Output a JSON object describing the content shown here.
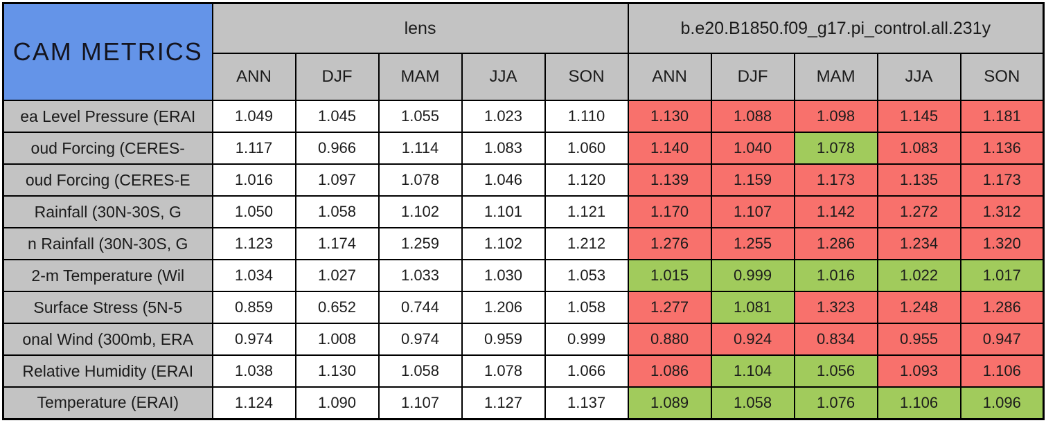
{
  "chart_data": {
    "type": "table",
    "title": "CAM METRICS",
    "col_groups": [
      {
        "label": "lens"
      },
      {
        "label": "b.e20.B1850.f09_g17.pi_control.all.231y"
      }
    ],
    "season_cols": [
      "ANN",
      "DJF",
      "MAM",
      "JJA",
      "SON"
    ],
    "colors": {
      "blue": "#6494E8",
      "gray": "#C3C3C3",
      "red": "#F8716C",
      "green": "#A1CB5C",
      "border": "#000000"
    },
    "rows": [
      {
        "label": "ea Level Pressure (ERAI",
        "lens": [
          "1.049",
          "1.045",
          "1.055",
          "1.023",
          "1.110"
        ],
        "control": [
          "1.130",
          "1.088",
          "1.098",
          "1.145",
          "1.181"
        ],
        "control_colors": [
          "red",
          "red",
          "red",
          "red",
          "red"
        ]
      },
      {
        "label": "oud Forcing (CERES-",
        "lens": [
          "1.117",
          "0.966",
          "1.114",
          "1.083",
          "1.060"
        ],
        "control": [
          "1.140",
          "1.040",
          "1.078",
          "1.083",
          "1.136"
        ],
        "control_colors": [
          "red",
          "red",
          "green",
          "red",
          "red"
        ]
      },
      {
        "label": "oud Forcing (CERES-E",
        "lens": [
          "1.016",
          "1.097",
          "1.078",
          "1.046",
          "1.120"
        ],
        "control": [
          "1.139",
          "1.159",
          "1.173",
          "1.135",
          "1.173"
        ],
        "control_colors": [
          "red",
          "red",
          "red",
          "red",
          "red"
        ]
      },
      {
        "label": "Rainfall (30N-30S, G",
        "lens": [
          "1.050",
          "1.058",
          "1.102",
          "1.101",
          "1.121"
        ],
        "control": [
          "1.170",
          "1.107",
          "1.142",
          "1.272",
          "1.312"
        ],
        "control_colors": [
          "red",
          "red",
          "red",
          "red",
          "red"
        ]
      },
      {
        "label": "n Rainfall (30N-30S, G",
        "lens": [
          "1.123",
          "1.174",
          "1.259",
          "1.102",
          "1.212"
        ],
        "control": [
          "1.276",
          "1.255",
          "1.286",
          "1.234",
          "1.320"
        ],
        "control_colors": [
          "red",
          "red",
          "red",
          "red",
          "red"
        ]
      },
      {
        "label": "2-m Temperature (Wil",
        "lens": [
          "1.034",
          "1.027",
          "1.033",
          "1.030",
          "1.053"
        ],
        "control": [
          "1.015",
          "0.999",
          "1.016",
          "1.022",
          "1.017"
        ],
        "control_colors": [
          "green",
          "green",
          "green",
          "green",
          "green"
        ]
      },
      {
        "label": "Surface Stress (5N-5",
        "lens": [
          "0.859",
          "0.652",
          "0.744",
          "1.206",
          "1.058"
        ],
        "control": [
          "1.277",
          "1.081",
          "1.323",
          "1.248",
          "1.286"
        ],
        "control_colors": [
          "red",
          "green",
          "red",
          "red",
          "red"
        ]
      },
      {
        "label": "onal Wind (300mb, ERA",
        "lens": [
          "0.974",
          "1.008",
          "0.974",
          "0.959",
          "0.999"
        ],
        "control": [
          "0.880",
          "0.924",
          "0.834",
          "0.955",
          "0.947"
        ],
        "control_colors": [
          "red",
          "red",
          "red",
          "red",
          "red"
        ]
      },
      {
        "label": "Relative Humidity (ERAI",
        "lens": [
          "1.038",
          "1.130",
          "1.058",
          "1.078",
          "1.066"
        ],
        "control": [
          "1.086",
          "1.104",
          "1.056",
          "1.093",
          "1.106"
        ],
        "control_colors": [
          "red",
          "green",
          "green",
          "red",
          "red"
        ]
      },
      {
        "label": "Temperature (ERAI)",
        "lens": [
          "1.124",
          "1.090",
          "1.107",
          "1.127",
          "1.137"
        ],
        "control": [
          "1.089",
          "1.058",
          "1.076",
          "1.106",
          "1.096"
        ],
        "control_colors": [
          "green",
          "green",
          "green",
          "green",
          "green"
        ]
      }
    ]
  }
}
